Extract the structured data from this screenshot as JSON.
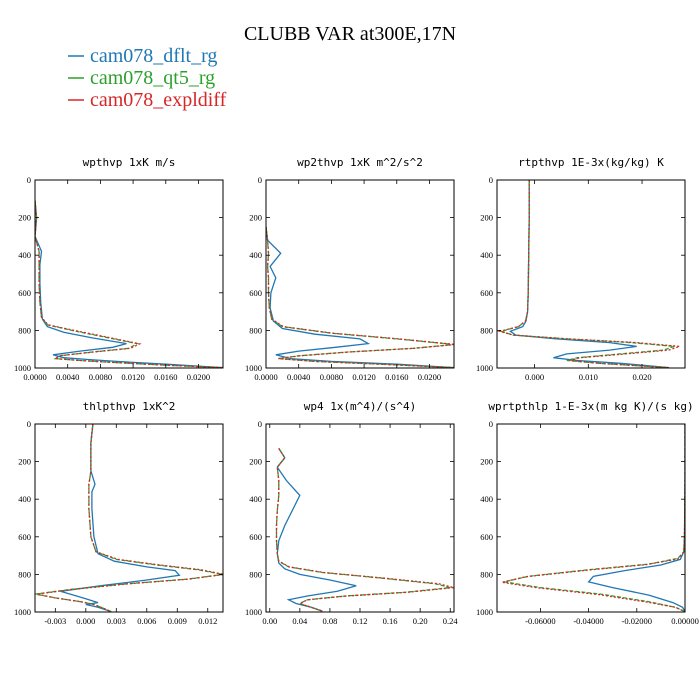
{
  "figure_title": "CLUBB VAR at300E,17N",
  "legend": [
    {
      "label": "cam078_dflt_rg",
      "color": "#1f77b4",
      "dash": ""
    },
    {
      "label": "cam078_qt5_rg",
      "color": "#2ca02c",
      "dash": "4,2"
    },
    {
      "label": "cam078_expldiff",
      "color": "#d62728",
      "dash": "2,2"
    }
  ],
  "chart_data": [
    {
      "type": "line",
      "title": "wpthvp   1xK m/s",
      "xlim": [
        0.0,
        0.023
      ],
      "ylim": [
        1000,
        0
      ],
      "xticks": [
        0.0,
        0.004,
        0.008,
        0.012,
        0.016,
        0.02
      ],
      "xticklabels": [
        "0.0000",
        "0.0040",
        "0.0080",
        "0.0120",
        "0.0160",
        "0.0200"
      ],
      "yticks": [
        0,
        200,
        400,
        600,
        800,
        1000
      ],
      "series": [
        {
          "color": "#1f77b4",
          "dash": "",
          "x": [
            0.0,
            0.0002,
            0.0,
            0.0008,
            0.0006,
            0.0006,
            0.0007,
            0.0009,
            0.0015,
            0.0035,
            0.007,
            0.0112,
            0.0095,
            0.0055,
            0.0022,
            0.0035,
            0.0065,
            0.01,
            0.016,
            0.023
          ],
          "y": [
            110,
            200,
            300,
            380,
            450,
            550,
            650,
            740,
            780,
            810,
            840,
            870,
            890,
            910,
            930,
            945,
            955,
            965,
            980,
            998
          ]
        },
        {
          "color": "#2ca02c",
          "dash": "4,2",
          "x": [
            0.0,
            0.0002,
            0.0,
            0.0005,
            0.0005,
            0.0005,
            0.0006,
            0.0008,
            0.0015,
            0.0045,
            0.009,
            0.0125,
            0.0115,
            0.007,
            0.003,
            0.0025,
            0.0055,
            0.0095,
            0.016,
            0.023
          ],
          "y": [
            110,
            200,
            300,
            380,
            450,
            550,
            650,
            730,
            770,
            800,
            840,
            870,
            895,
            915,
            935,
            950,
            960,
            970,
            985,
            998
          ]
        },
        {
          "color": "#d62728",
          "dash": "2,2",
          "x": [
            0.0,
            0.0002,
            0.0,
            0.0005,
            0.0005,
            0.0005,
            0.0006,
            0.0008,
            0.0016,
            0.0048,
            0.0093,
            0.0128,
            0.0117,
            0.0072,
            0.003,
            0.0025,
            0.0055,
            0.0095,
            0.016,
            0.023
          ],
          "y": [
            110,
            200,
            300,
            380,
            450,
            550,
            650,
            730,
            770,
            800,
            840,
            872,
            895,
            915,
            935,
            950,
            960,
            970,
            985,
            998
          ]
        }
      ]
    },
    {
      "type": "line",
      "title": "wp2thvp   1xK m^2/s^2",
      "xlim": [
        0.0,
        0.023
      ],
      "ylim": [
        1000,
        0
      ],
      "xticks": [
        0.0,
        0.004,
        0.008,
        0.012,
        0.016,
        0.02
      ],
      "xticklabels": [
        "0.0000",
        "0.0040",
        "0.0080",
        "0.0120",
        "0.0160",
        "0.0200"
      ],
      "yticks": [
        0,
        200,
        400,
        600,
        800,
        1000
      ],
      "series": [
        {
          "color": "#1f77b4",
          "dash": "",
          "x": [
            0.0,
            0.0002,
            0.0018,
            0.0005,
            0.0012,
            0.0006,
            0.0005,
            0.0009,
            0.002,
            0.006,
            0.0115,
            0.0125,
            0.0085,
            0.004,
            0.0012,
            0.003,
            0.008,
            0.016,
            0.023
          ],
          "y": [
            250,
            320,
            390,
            460,
            520,
            600,
            680,
            750,
            790,
            820,
            845,
            870,
            890,
            910,
            930,
            950,
            965,
            980,
            998
          ]
        },
        {
          "color": "#2ca02c",
          "dash": "4,2",
          "x": [
            0.0,
            0.0002,
            0.0003,
            0.0002,
            0.0003,
            0.0003,
            0.0004,
            0.0007,
            0.002,
            0.008,
            0.016,
            0.023,
            0.018,
            0.01,
            0.004,
            0.0015,
            0.006,
            0.014,
            0.023
          ],
          "y": [
            250,
            320,
            390,
            460,
            520,
            600,
            680,
            740,
            780,
            815,
            845,
            875,
            895,
            915,
            935,
            950,
            965,
            980,
            998
          ]
        },
        {
          "color": "#d62728",
          "dash": "2,2",
          "x": [
            0.0,
            0.0002,
            0.0003,
            0.0002,
            0.0003,
            0.0003,
            0.0004,
            0.0007,
            0.0021,
            0.0082,
            0.0163,
            0.0232,
            0.0182,
            0.0102,
            0.0042,
            0.0015,
            0.006,
            0.014,
            0.023
          ],
          "y": [
            250,
            320,
            390,
            460,
            520,
            600,
            680,
            740,
            780,
            815,
            845,
            875,
            895,
            915,
            935,
            950,
            965,
            980,
            998
          ]
        }
      ]
    },
    {
      "type": "line",
      "title": "rtpthvp   1E-3x(kg/kg) K",
      "xlim": [
        -0.007,
        0.028
      ],
      "ylim": [
        1000,
        0
      ],
      "xticks": [
        0.0,
        0.01,
        0.02
      ],
      "xticklabels": [
        "0.000",
        "0.010",
        "0.020"
      ],
      "yticks": [
        0,
        200,
        400,
        600,
        800,
        1000
      ],
      "series": [
        {
          "color": "#1f77b4",
          "dash": "",
          "x": [
            -0.001,
            -0.001,
            -0.0011,
            -0.0012,
            -0.0013,
            -0.0016,
            -0.0022,
            -0.0045,
            -0.0035,
            0.004,
            0.014,
            0.019,
            0.014,
            0.006,
            0.0035,
            0.008,
            0.016,
            0.025
          ],
          "y": [
            0,
            200,
            400,
            600,
            700,
            750,
            780,
            805,
            825,
            845,
            865,
            885,
            905,
            925,
            945,
            960,
            975,
            998
          ]
        },
        {
          "color": "#2ca02c",
          "dash": "4,2",
          "x": [
            -0.001,
            -0.001,
            -0.0011,
            -0.0012,
            -0.0013,
            -0.0017,
            -0.003,
            -0.0062,
            -0.004,
            0.006,
            0.018,
            0.026,
            0.024,
            0.016,
            0.008,
            0.006,
            0.012,
            0.025
          ],
          "y": [
            0,
            200,
            400,
            600,
            700,
            750,
            780,
            805,
            825,
            845,
            865,
            885,
            905,
            925,
            945,
            960,
            975,
            998
          ]
        },
        {
          "color": "#d62728",
          "dash": "2,2",
          "x": [
            -0.001,
            -0.001,
            -0.0011,
            -0.0012,
            -0.0013,
            -0.0017,
            -0.003,
            -0.0065,
            -0.004,
            0.0065,
            0.019,
            0.027,
            0.025,
            0.017,
            0.0085,
            0.0065,
            0.012,
            0.025
          ],
          "y": [
            0,
            200,
            400,
            600,
            700,
            750,
            780,
            805,
            825,
            845,
            865,
            885,
            905,
            925,
            945,
            960,
            975,
            998
          ]
        }
      ]
    },
    {
      "type": "line",
      "title": "thlpthvp   1xK^2",
      "xlim": [
        -0.005,
        0.0135
      ],
      "ylim": [
        1000,
        0
      ],
      "xticks": [
        -0.003,
        0.0,
        0.003,
        0.006,
        0.009,
        0.012
      ],
      "xticklabels": [
        "-0.003",
        "0.000",
        "0.003",
        "0.006",
        "0.009",
        "0.012"
      ],
      "yticks": [
        0,
        200,
        400,
        600,
        800,
        1000
      ],
      "series": [
        {
          "color": "#1f77b4",
          "dash": "",
          "x": [
            0.0007,
            0.0005,
            0.0005,
            0.0009,
            0.0006,
            0.0006,
            0.0008,
            0.0012,
            0.0028,
            0.006,
            0.0088,
            0.0092,
            0.006,
            0.0015,
            -0.0025,
            -0.0012,
            0.0,
            0.0012,
            0.0,
            0.0012,
            0.0025
          ],
          "y": [
            0,
            100,
            250,
            320,
            360,
            450,
            600,
            690,
            730,
            760,
            780,
            805,
            830,
            860,
            890,
            910,
            930,
            950,
            960,
            975,
            998
          ]
        },
        {
          "color": "#2ca02c",
          "dash": "4,2",
          "x": [
            0.0007,
            0.0005,
            0.0005,
            0.0003,
            0.0003,
            0.0003,
            0.0005,
            0.001,
            0.003,
            0.007,
            0.011,
            0.0135,
            0.01,
            0.004,
            -0.0015,
            -0.005,
            -0.003,
            -0.0005,
            0.0008,
            0.0015,
            0.0025
          ],
          "y": [
            0,
            100,
            250,
            320,
            360,
            450,
            600,
            680,
            720,
            750,
            775,
            800,
            825,
            850,
            880,
            905,
            925,
            945,
            960,
            975,
            998
          ]
        },
        {
          "color": "#d62728",
          "dash": "2,2",
          "x": [
            0.0007,
            0.0005,
            0.0005,
            0.0003,
            0.0003,
            0.0003,
            0.0005,
            0.001,
            0.0032,
            0.0073,
            0.0113,
            0.0136,
            0.0102,
            0.0042,
            -0.0013,
            -0.0048,
            -0.003,
            -0.0005,
            0.0008,
            0.0015,
            0.0025
          ],
          "y": [
            0,
            100,
            250,
            320,
            360,
            450,
            600,
            680,
            720,
            750,
            775,
            800,
            825,
            850,
            880,
            905,
            925,
            945,
            960,
            975,
            998
          ]
        }
      ]
    },
    {
      "type": "line",
      "title": "wp4   1x(m^4)/(s^4)",
      "xlim": [
        -0.005,
        0.245
      ],
      "ylim": [
        1000,
        0
      ],
      "xticks": [
        0.0,
        0.04,
        0.08,
        0.12,
        0.16,
        0.2,
        0.24
      ],
      "xticklabels": [
        "0.00",
        "0.04",
        "0.08",
        "0.12",
        "0.16",
        "0.20",
        "0.24"
      ],
      "yticks": [
        0,
        200,
        400,
        600,
        800,
        1000
      ],
      "series": [
        {
          "color": "#1f77b4",
          "dash": "",
          "x": [
            0.012,
            0.02,
            0.01,
            0.022,
            0.04,
            0.03,
            0.02,
            0.012,
            0.01,
            0.012,
            0.02,
            0.04,
            0.08,
            0.115,
            0.09,
            0.05,
            0.025,
            0.035,
            0.055,
            0.07
          ],
          "y": [
            130,
            180,
            230,
            300,
            380,
            460,
            540,
            620,
            690,
            740,
            770,
            800,
            830,
            860,
            890,
            915,
            935,
            955,
            975,
            995
          ]
        },
        {
          "color": "#2ca02c",
          "dash": "4,2",
          "x": [
            0.012,
            0.02,
            0.01,
            0.012,
            0.012,
            0.01,
            0.009,
            0.009,
            0.01,
            0.012,
            0.025,
            0.07,
            0.15,
            0.22,
            0.24,
            0.18,
            0.1,
            0.05,
            0.04,
            0.055,
            0.07
          ],
          "y": [
            130,
            180,
            230,
            300,
            380,
            460,
            540,
            620,
            690,
            730,
            760,
            790,
            820,
            850,
            870,
            895,
            915,
            935,
            955,
            975,
            995
          ]
        },
        {
          "color": "#d62728",
          "dash": "2,2",
          "x": [
            0.012,
            0.02,
            0.01,
            0.012,
            0.012,
            0.01,
            0.009,
            0.009,
            0.01,
            0.012,
            0.026,
            0.072,
            0.153,
            0.225,
            0.245,
            0.183,
            0.102,
            0.05,
            0.04,
            0.055,
            0.07
          ],
          "y": [
            130,
            180,
            230,
            300,
            380,
            460,
            540,
            620,
            690,
            730,
            760,
            790,
            820,
            850,
            870,
            895,
            915,
            935,
            955,
            975,
            995
          ]
        }
      ]
    },
    {
      "type": "line",
      "title": "wprtpthlp   1-E-3x(m kg K)/(s kg)",
      "xlim": [
        -0.078,
        0.0
      ],
      "ylim": [
        1000,
        0
      ],
      "xticks": [
        -0.06,
        -0.04,
        -0.02,
        0.0
      ],
      "xticklabels": [
        "-0.06000",
        "-0.04000",
        "-0.02000",
        "0.00000"
      ],
      "yticks": [
        0,
        200,
        400,
        600,
        800,
        1000
      ],
      "series": [
        {
          "color": "#1f77b4",
          "dash": "",
          "x": [
            0.0,
            0.0,
            -0.0002,
            -0.0005,
            -0.002,
            -0.01,
            -0.025,
            -0.038,
            -0.04,
            -0.03,
            -0.015,
            -0.005,
            -0.001,
            0.0
          ],
          "y": [
            0,
            300,
            600,
            680,
            720,
            750,
            780,
            810,
            840,
            870,
            910,
            950,
            975,
            998
          ]
        },
        {
          "color": "#2ca02c",
          "dash": "4,2",
          "x": [
            0.0,
            0.0,
            -0.0002,
            -0.0005,
            -0.003,
            -0.015,
            -0.04,
            -0.065,
            -0.075,
            -0.06,
            -0.035,
            -0.015,
            -0.004,
            0.0
          ],
          "y": [
            0,
            300,
            600,
            680,
            715,
            745,
            775,
            810,
            840,
            870,
            905,
            945,
            975,
            998
          ]
        },
        {
          "color": "#d62728",
          "dash": "2,2",
          "x": [
            0.0,
            0.0,
            -0.0002,
            -0.0005,
            -0.003,
            -0.016,
            -0.041,
            -0.066,
            -0.076,
            -0.061,
            -0.036,
            -0.016,
            -0.004,
            0.0
          ],
          "y": [
            0,
            300,
            600,
            680,
            718,
            748,
            778,
            812,
            842,
            872,
            907,
            947,
            975,
            998
          ]
        }
      ]
    }
  ]
}
